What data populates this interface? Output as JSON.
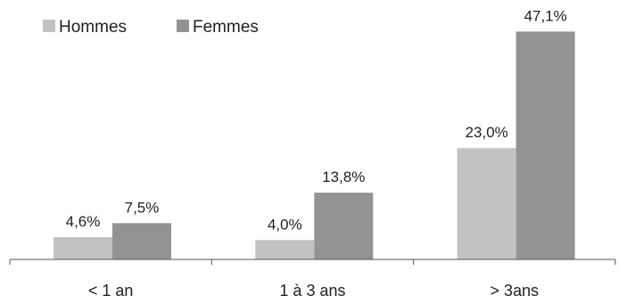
{
  "chart_data": {
    "type": "bar",
    "categories": [
      "< 1 an",
      "1 à 3 ans",
      "> 3ans"
    ],
    "series": [
      {
        "name": "Hommes",
        "values": [
          4.6,
          4.0,
          23.0
        ],
        "labels": [
          "4,6%",
          "4,0%",
          "23,0%"
        ],
        "color": "#c2c2c2"
      },
      {
        "name": "Femmes",
        "values": [
          7.5,
          13.8,
          47.1
        ],
        "labels": [
          "7,5%",
          "13,8%",
          "47,1%"
        ],
        "color": "#939393"
      }
    ],
    "ylim": [
      0,
      50
    ],
    "grid": false,
    "legend_position": "top-left"
  }
}
